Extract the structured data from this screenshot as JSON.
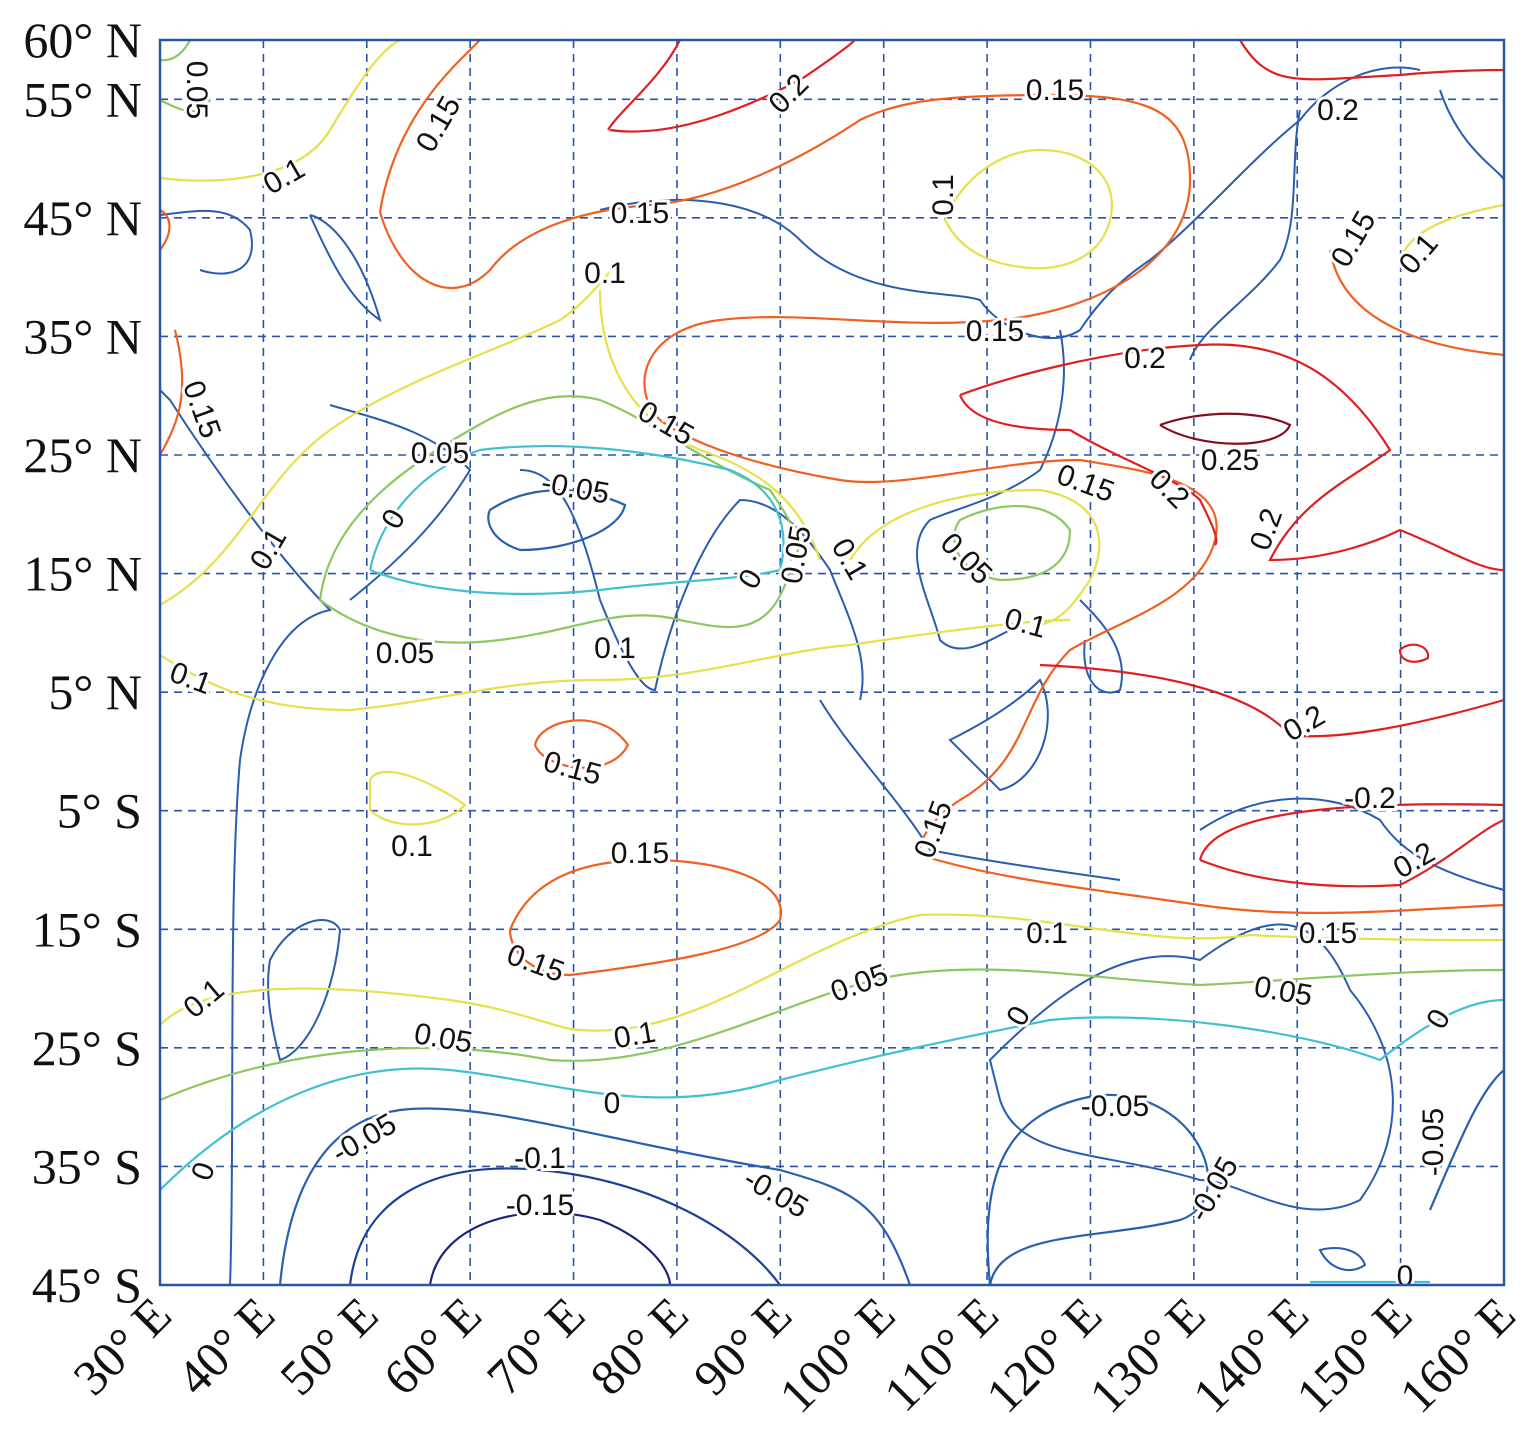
{
  "map": {
    "xlim": [
      30,
      160
    ],
    "ylim": [
      -45,
      60
    ],
    "xticks": [
      {
        "value": 30,
        "label": "30° E"
      },
      {
        "value": 40,
        "label": "40° E"
      },
      {
        "value": 50,
        "label": "50° E"
      },
      {
        "value": 60,
        "label": "60° E"
      },
      {
        "value": 70,
        "label": "70° E"
      },
      {
        "value": 80,
        "label": "80° E"
      },
      {
        "value": 90,
        "label": "90° E"
      },
      {
        "value": 100,
        "label": "100° E"
      },
      {
        "value": 110,
        "label": "110° E"
      },
      {
        "value": 120,
        "label": "120° E"
      },
      {
        "value": 130,
        "label": "130° E"
      },
      {
        "value": 140,
        "label": "140° E"
      },
      {
        "value": 150,
        "label": "150° E"
      },
      {
        "value": 160,
        "label": "160° E"
      }
    ],
    "yticks": [
      {
        "value": 60,
        "label": "60° N"
      },
      {
        "value": 55,
        "label": "55° N"
      },
      {
        "value": 45,
        "label": "45° N"
      },
      {
        "value": 35,
        "label": "35° N"
      },
      {
        "value": 25,
        "label": "25° N"
      },
      {
        "value": 15,
        "label": "15° N"
      },
      {
        "value": 5,
        "label": "5° N"
      },
      {
        "value": -5,
        "label": "5° S"
      },
      {
        "value": -15,
        "label": "15° S"
      },
      {
        "value": -25,
        "label": "25° S"
      },
      {
        "value": -35,
        "label": "35° S"
      },
      {
        "value": -45,
        "label": "45° S"
      }
    ],
    "contour_labels": [
      0.05,
      0.15,
      0.1,
      0.2,
      0.15,
      0.2,
      0.1,
      0.15,
      0.1,
      0.15,
      0.1,
      0.15,
      0.15,
      0.2,
      0.15,
      0.25,
      0.05,
      -0.05,
      0.15,
      0.2,
      0.2,
      0,
      0.1,
      0.05,
      0,
      0.1,
      0.05,
      0.1,
      0.1,
      0.05,
      0.1,
      0.2,
      0.15,
      -0.2,
      0.15,
      0.1,
      0.15,
      0.2,
      0.1,
      0.15,
      0.15,
      0.05,
      0.05,
      0.1,
      0,
      0,
      0.05,
      0.1,
      0,
      -0.05,
      -0.05,
      -0.05,
      -0.1,
      0,
      -0.05,
      -0.05,
      -0.15,
      0
    ]
  }
}
